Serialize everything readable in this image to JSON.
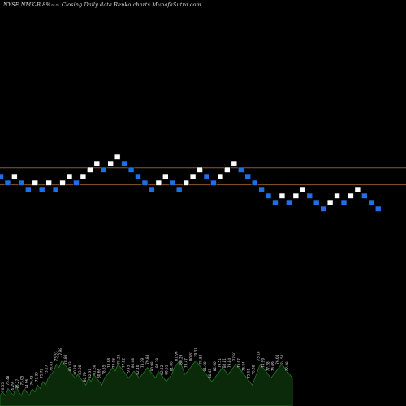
{
  "header": {
    "title": "NYSE NMK-B 8%~~ Closing Daily data  Renko  charts MunafaSutra.com"
  },
  "colors": {
    "background": "#000000",
    "up_brick": "#ffffff",
    "down_brick": "#1e6fe8",
    "brick_border": "#000000",
    "reference_line": "#8a5a2a",
    "volume_fill": "#0a2a0a",
    "volume_edge": "#1f7a1f",
    "volume_label": "#dddddd"
  },
  "chart_data": {
    "type": "renko",
    "bricks": [
      {
        "level": 0,
        "dir": "down"
      },
      {
        "level": -1,
        "dir": "down"
      },
      {
        "level": 0,
        "dir": "up"
      },
      {
        "level": -1,
        "dir": "down"
      },
      {
        "level": -2,
        "dir": "down"
      },
      {
        "level": -1,
        "dir": "up"
      },
      {
        "level": -2,
        "dir": "down"
      },
      {
        "level": -1,
        "dir": "up"
      },
      {
        "level": -2,
        "dir": "down"
      },
      {
        "level": -1,
        "dir": "up"
      },
      {
        "level": 0,
        "dir": "up"
      },
      {
        "level": -1,
        "dir": "down"
      },
      {
        "level": 0,
        "dir": "up"
      },
      {
        "level": 1,
        "dir": "up"
      },
      {
        "level": 2,
        "dir": "up"
      },
      {
        "level": 1,
        "dir": "down"
      },
      {
        "level": 2,
        "dir": "up"
      },
      {
        "level": 3,
        "dir": "up"
      },
      {
        "level": 2,
        "dir": "down"
      },
      {
        "level": 1,
        "dir": "down"
      },
      {
        "level": 0,
        "dir": "down"
      },
      {
        "level": -1,
        "dir": "down"
      },
      {
        "level": -2,
        "dir": "down"
      },
      {
        "level": -1,
        "dir": "up"
      },
      {
        "level": 0,
        "dir": "up"
      },
      {
        "level": -1,
        "dir": "down"
      },
      {
        "level": -2,
        "dir": "down"
      },
      {
        "level": -1,
        "dir": "up"
      },
      {
        "level": 0,
        "dir": "up"
      },
      {
        "level": 1,
        "dir": "up"
      },
      {
        "level": 0,
        "dir": "down"
      },
      {
        "level": -1,
        "dir": "down"
      },
      {
        "level": 0,
        "dir": "up"
      },
      {
        "level": 1,
        "dir": "up"
      },
      {
        "level": 2,
        "dir": "up"
      },
      {
        "level": 1,
        "dir": "down"
      },
      {
        "level": 0,
        "dir": "down"
      },
      {
        "level": -1,
        "dir": "down"
      },
      {
        "level": -2,
        "dir": "down"
      },
      {
        "level": -3,
        "dir": "down"
      },
      {
        "level": -4,
        "dir": "down"
      },
      {
        "level": -3,
        "dir": "up"
      },
      {
        "level": -4,
        "dir": "down"
      },
      {
        "level": -3,
        "dir": "up"
      },
      {
        "level": -2,
        "dir": "up"
      },
      {
        "level": -3,
        "dir": "down"
      },
      {
        "level": -4,
        "dir": "down"
      },
      {
        "level": -5,
        "dir": "down"
      },
      {
        "level": -4,
        "dir": "up"
      },
      {
        "level": -3,
        "dir": "up"
      },
      {
        "level": -4,
        "dir": "down"
      },
      {
        "level": -3,
        "dir": "up"
      },
      {
        "level": -2,
        "dir": "up"
      },
      {
        "level": -3,
        "dir": "down"
      },
      {
        "level": -4,
        "dir": "down"
      },
      {
        "level": -5,
        "dir": "down"
      }
    ],
    "reference_levels": [
      1.4,
      -1.2
    ],
    "volume": [
      3,
      4,
      3,
      5,
      4,
      3,
      6,
      4,
      3,
      5,
      4,
      3,
      5,
      4,
      6,
      5,
      7,
      6,
      8,
      9,
      10,
      12,
      11,
      13,
      12,
      11,
      10,
      9,
      8,
      9,
      8,
      7,
      6,
      8,
      7,
      9,
      8,
      7,
      6,
      8,
      9,
      10,
      11,
      10,
      12,
      11,
      10,
      9,
      8,
      9,
      10,
      9,
      8,
      9,
      10,
      11,
      10,
      9,
      8,
      10,
      9,
      8,
      7,
      8,
      9,
      11,
      12,
      13,
      11,
      9,
      10,
      11,
      12,
      13,
      12,
      11,
      10,
      9,
      8,
      7,
      8,
      9,
      10,
      11,
      10,
      9,
      10,
      11,
      12,
      11,
      10,
      9,
      8,
      7,
      6,
      8,
      10,
      12,
      11,
      10,
      9,
      8,
      9,
      10,
      11,
      12,
      11,
      10,
      9,
      8
    ],
    "volume_labels": [
      "76.55",
      "75.48",
      "76.29",
      "76.27",
      "75.05",
      "74.96",
      "76.43",
      "73.39",
      "75.72",
      "73.27",
      "76.87",
      "75.53",
      "77.98",
      "78.80",
      "80.33",
      "80.28",
      "83.00",
      "80.79",
      "82.37",
      "81.60",
      "80.66",
      "78.55",
      "78.88",
      "79.08",
      "78.28",
      "77.82",
      "79.45",
      "80.68",
      "82.40",
      "78.39",
      "79.88",
      "80.98",
      "80.78",
      "82.52",
      "80.51",
      "81.06",
      "81.96",
      "80.29",
      "79.47",
      "80.87",
      "79.37",
      "78.82",
      "81.60",
      "80.43",
      "82.60",
      "79.51",
      "80.81",
      "79.84",
      "77.81",
      "75.07",
      "76.84",
      "75.61",
      "76.38",
      "75.18",
      "74.99",
      "77.28",
      "76.09",
      "76.04",
      "74.50",
      "77.38"
    ]
  }
}
